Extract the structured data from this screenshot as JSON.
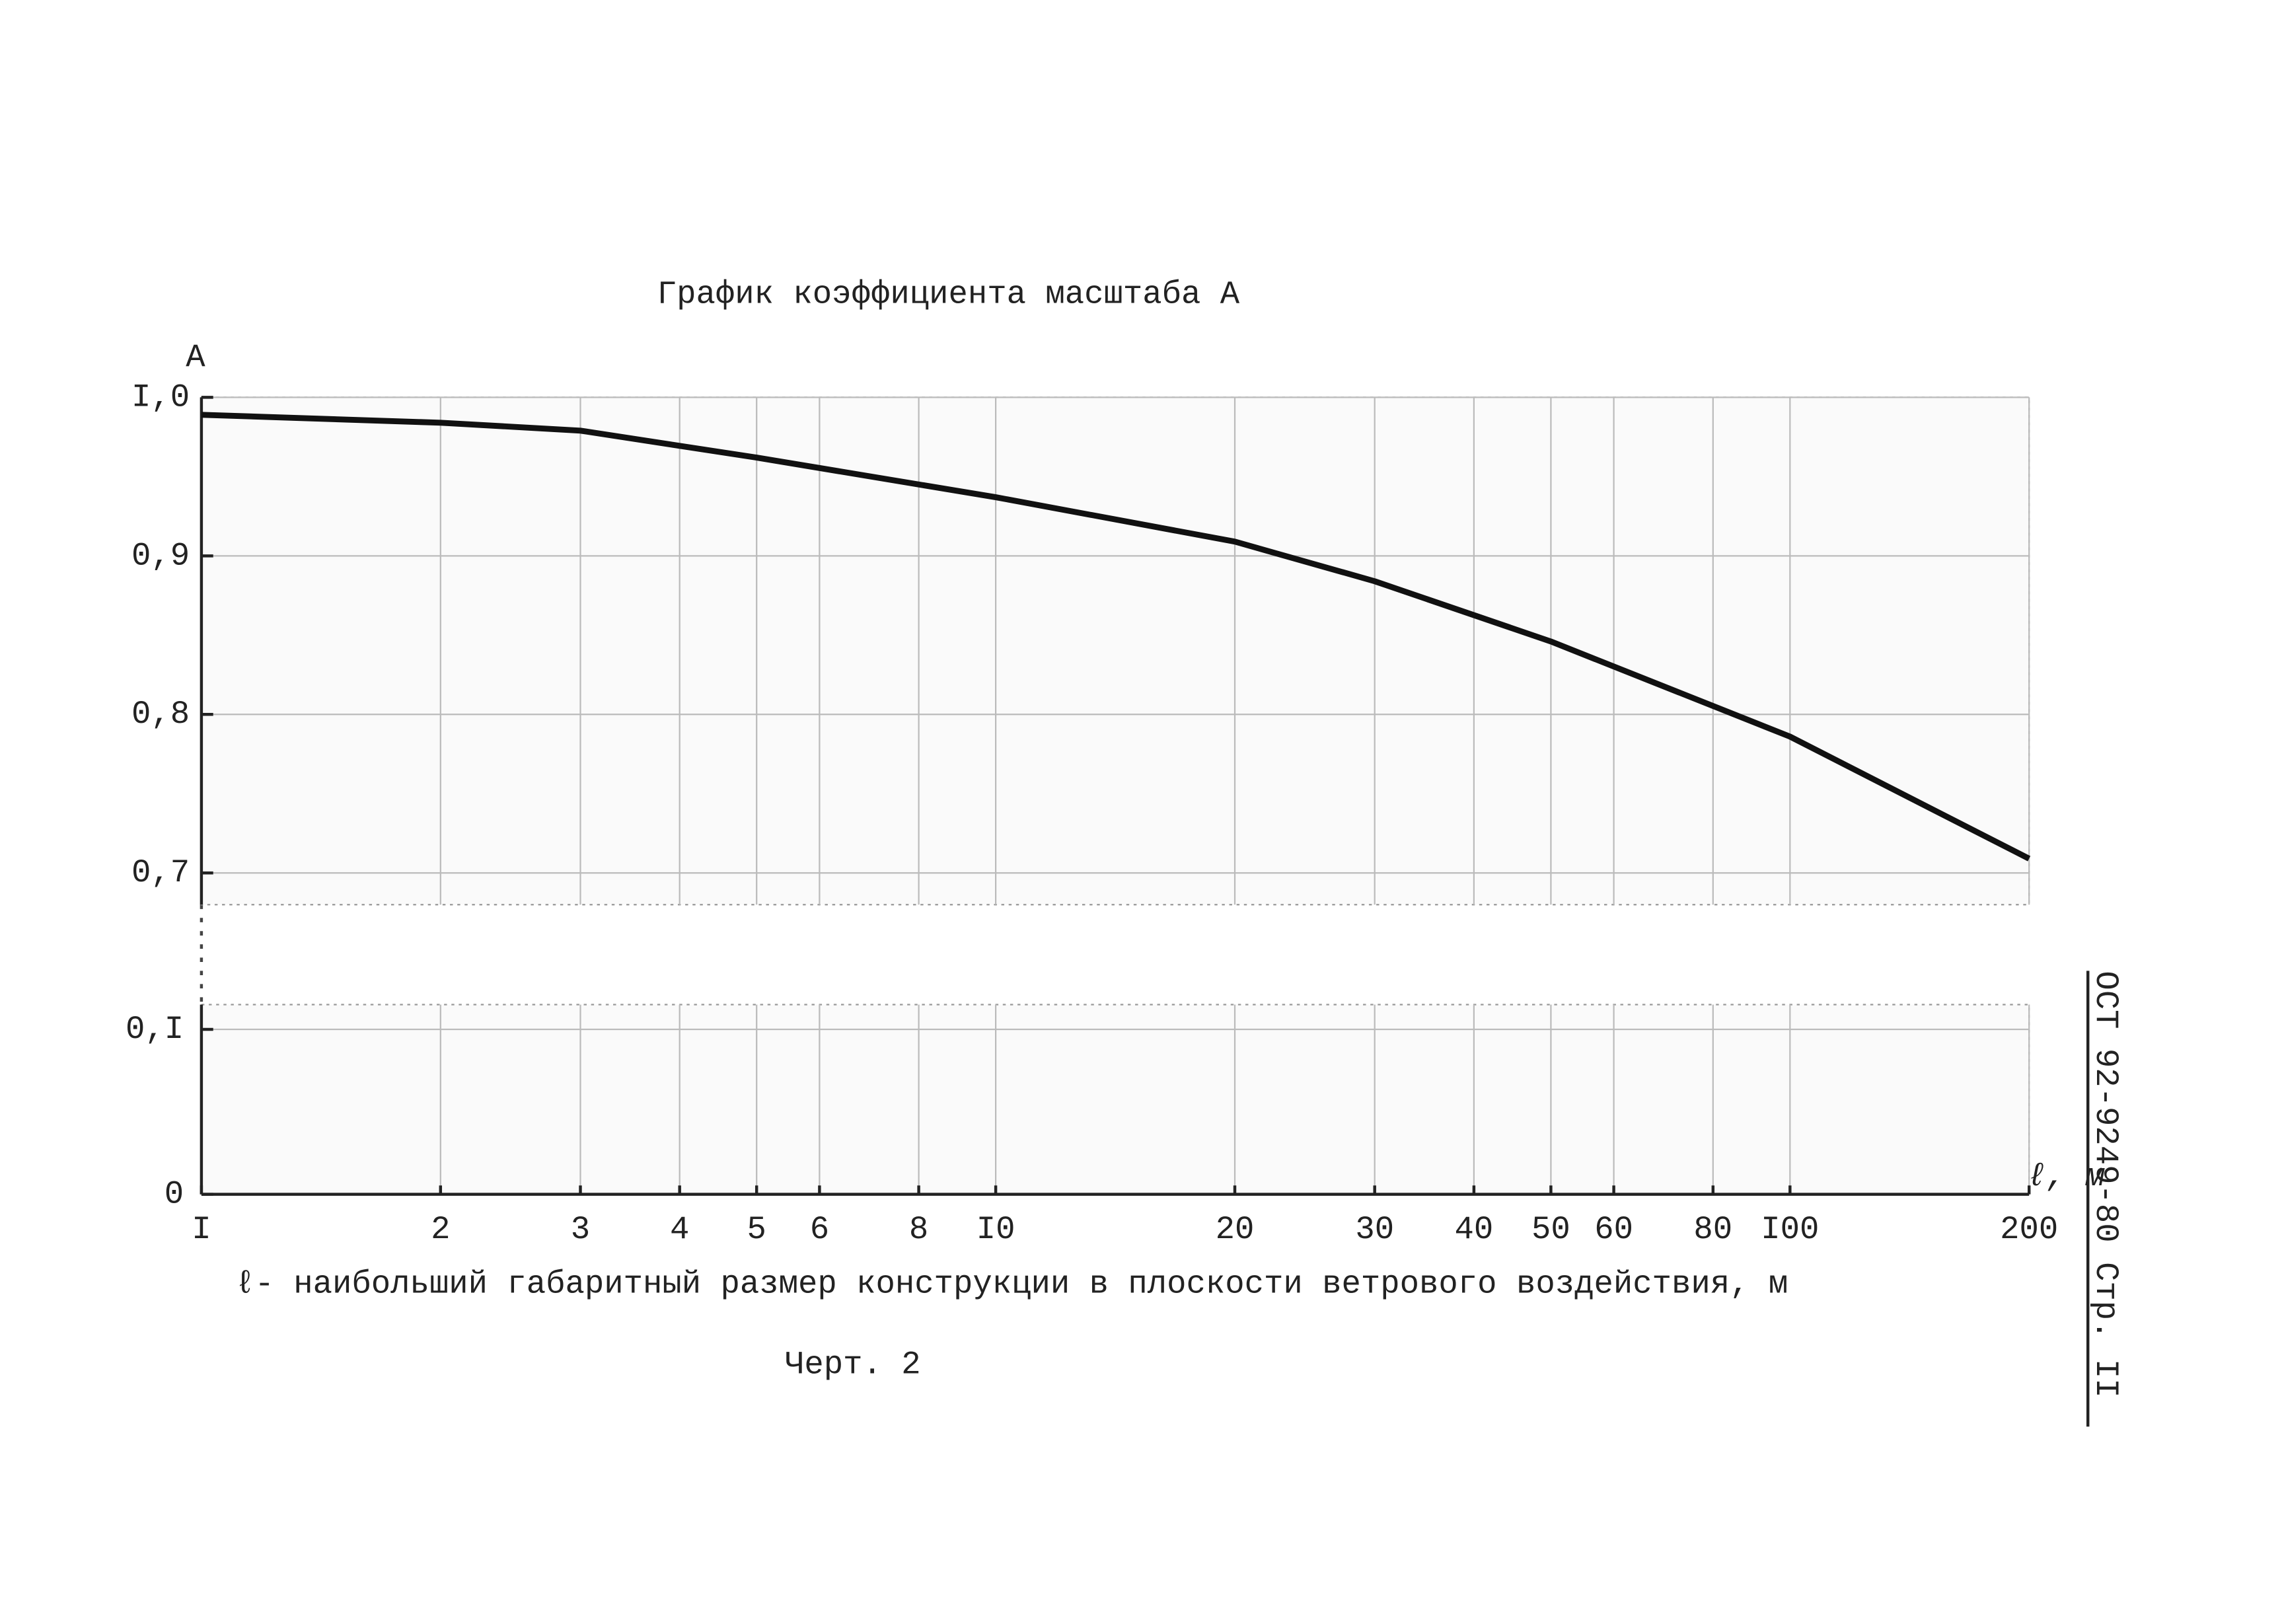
{
  "chart_data": {
    "type": "line",
    "title": "График коэффициента масштаба А",
    "y_label": "А",
    "x_axis_label": "ℓ, м",
    "x_label": "ℓ- наибольший габаритный размер конструкции в плоскости ветрового воздействия, м",
    "caption": "Черт. 2",
    "side_note": "ОСТ 92-9249-80 Стр. II",
    "x": [
      1,
      2,
      3,
      5,
      10,
      20,
      30,
      50,
      100,
      200
    ],
    "values": [
      0.989,
      0.984,
      0.979,
      0.962,
      0.937,
      0.909,
      0.884,
      0.846,
      0.786,
      0.709
    ],
    "color": "#111",
    "xlim": [
      1,
      200
    ],
    "log_x": true,
    "xticks": [
      {
        "value": 1,
        "label": "I"
      },
      2,
      3,
      4,
      5,
      6,
      8,
      {
        "value": 10,
        "label": "I0"
      },
      20,
      30,
      40,
      50,
      60,
      80,
      {
        "value": 100,
        "label": "I00"
      },
      200
    ],
    "ylim": [
      0.68,
      1.0
    ],
    "yticks": [
      {
        "value": 0.7,
        "label": "0,7"
      },
      {
        "value": 0.8,
        "label": "0,8"
      },
      {
        "value": 0.9,
        "label": "0,9"
      },
      {
        "value": 1.0,
        "label": "I,0"
      }
    ],
    "lower_ylim": [
      0,
      0.115
    ],
    "lower_yticks": [
      0,
      {
        "value": 0.1,
        "label": "0,I"
      }
    ],
    "grid": true
  }
}
